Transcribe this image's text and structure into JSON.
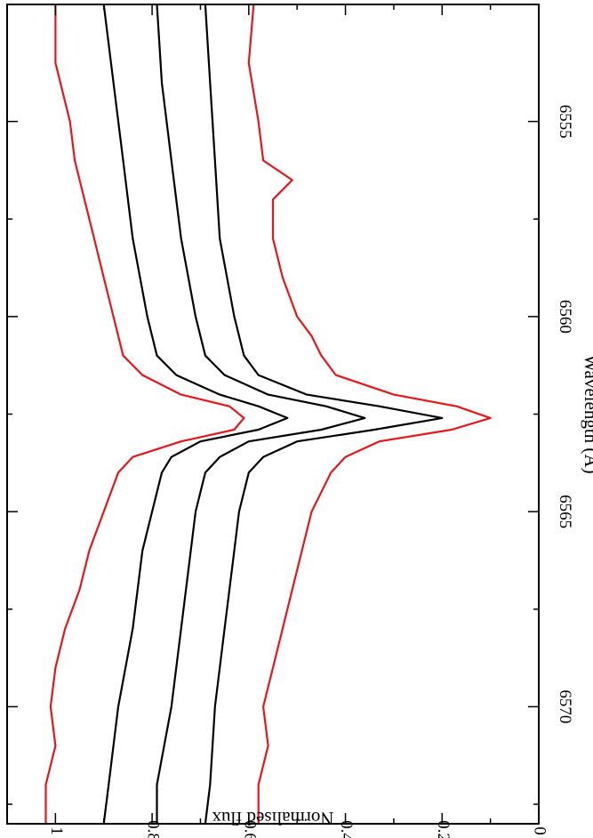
{
  "chart_data": {
    "type": "line",
    "orientation": "rotated-90",
    "xlabel": "Wavelength (Å)",
    "ylabel": "Normalised flux",
    "xlim": [
      6552,
      6573
    ],
    "ylim": [
      0,
      1.1
    ],
    "xticks": [
      6555,
      6560,
      6565,
      6570
    ],
    "xticklabels": [
      "6555",
      "6560",
      "6565",
      "6570"
    ],
    "yticks": [
      0,
      0.2,
      0.4,
      0.6,
      0.8,
      1
    ],
    "yticklabels": [
      "0",
      "0.2",
      "0.4",
      "0.6",
      "0.8",
      "1"
    ],
    "grid": false,
    "series": [
      {
        "color": "#e8161b",
        "x": [
          6552.0,
          6553.5,
          6555.0,
          6556.0,
          6556.5,
          6557.0,
          6558.0,
          6559.0,
          6560.0,
          6560.5,
          6561.0,
          6561.5,
          6562.0,
          6562.3,
          6562.6,
          6562.9,
          6563.2,
          6563.6,
          6564.0,
          6564.5,
          6565.0,
          6566.0,
          6567.0,
          6568.0,
          6569.0,
          6570.0,
          6571.0,
          6572.0,
          6573.0
        ],
        "y": [
          0.59,
          0.6,
          0.58,
          0.57,
          0.51,
          0.55,
          0.55,
          0.53,
          0.5,
          0.47,
          0.45,
          0.42,
          0.3,
          0.17,
          0.1,
          0.18,
          0.33,
          0.4,
          0.43,
          0.45,
          0.47,
          0.49,
          0.51,
          0.53,
          0.55,
          0.57,
          0.56,
          0.58,
          0.58
        ]
      },
      {
        "color": "#000000",
        "x": [
          6552.0,
          6554.0,
          6556.0,
          6558.0,
          6560.0,
          6561.0,
          6561.5,
          6562.0,
          6562.3,
          6562.6,
          6562.9,
          6563.2,
          6563.6,
          6564.0,
          6565.0,
          6566.0,
          6568.0,
          6570.0,
          6572.0,
          6573.0
        ],
        "y": [
          0.69,
          0.68,
          0.67,
          0.66,
          0.63,
          0.61,
          0.58,
          0.48,
          0.33,
          0.2,
          0.34,
          0.5,
          0.57,
          0.6,
          0.62,
          0.63,
          0.65,
          0.67,
          0.68,
          0.69
        ]
      },
      {
        "color": "#000000",
        "x": [
          6552.0,
          6554.0,
          6556.0,
          6558.0,
          6560.0,
          6561.0,
          6561.5,
          6562.0,
          6562.3,
          6562.6,
          6562.9,
          6563.2,
          6563.6,
          6564.0,
          6565.0,
          6566.0,
          6568.0,
          6570.0,
          6572.0,
          6573.0
        ],
        "y": [
          0.79,
          0.78,
          0.76,
          0.74,
          0.71,
          0.69,
          0.65,
          0.56,
          0.44,
          0.36,
          0.45,
          0.6,
          0.66,
          0.69,
          0.71,
          0.72,
          0.74,
          0.76,
          0.79,
          0.79
        ]
      },
      {
        "color": "#000000",
        "x": [
          6552.0,
          6554.0,
          6556.0,
          6558.0,
          6560.0,
          6561.0,
          6561.5,
          6562.0,
          6562.3,
          6562.6,
          6562.9,
          6563.2,
          6563.6,
          6564.0,
          6565.0,
          6566.0,
          6568.0,
          6570.0,
          6572.0,
          6573.0
        ],
        "y": [
          0.9,
          0.88,
          0.86,
          0.84,
          0.81,
          0.79,
          0.75,
          0.66,
          0.58,
          0.52,
          0.58,
          0.7,
          0.76,
          0.78,
          0.8,
          0.82,
          0.84,
          0.87,
          0.89,
          0.9
        ]
      },
      {
        "color": "#e8161b",
        "x": [
          6552.0,
          6553.5,
          6555.0,
          6556.0,
          6557.0,
          6558.0,
          6559.0,
          6560.0,
          6561.0,
          6561.5,
          6562.0,
          6562.3,
          6562.6,
          6562.9,
          6563.2,
          6563.6,
          6564.0,
          6565.0,
          6566.0,
          6567.0,
          6568.0,
          6569.0,
          6570.0,
          6571.0,
          6572.0,
          6573.0
        ],
        "y": [
          1.0,
          1.0,
          0.97,
          0.96,
          0.94,
          0.92,
          0.9,
          0.88,
          0.86,
          0.82,
          0.74,
          0.64,
          0.61,
          0.63,
          0.74,
          0.84,
          0.87,
          0.9,
          0.93,
          0.95,
          0.98,
          1.0,
          1.01,
          1.0,
          1.02,
          1.02
        ]
      }
    ]
  }
}
